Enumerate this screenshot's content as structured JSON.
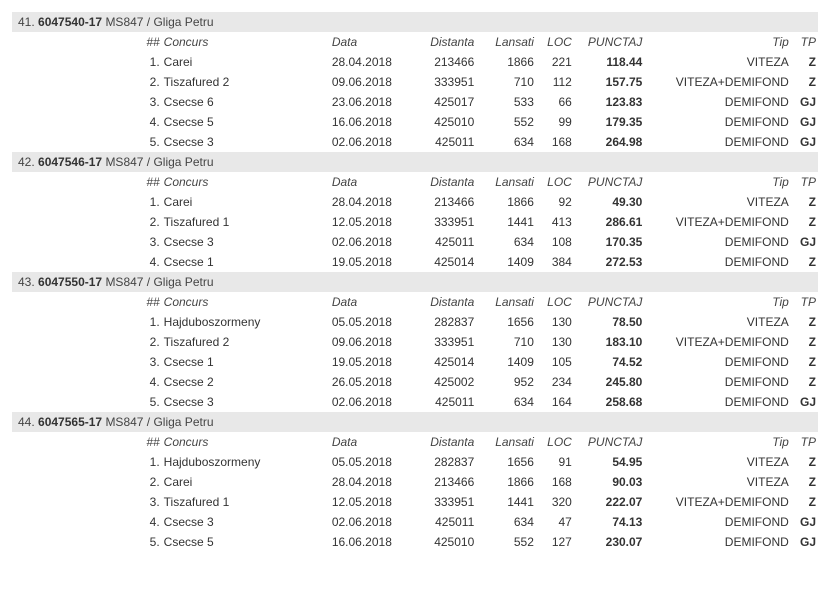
{
  "headers": {
    "nn": "##",
    "concurs": "Concurs",
    "data": "Data",
    "distanta": "Distanta",
    "lansati": "Lansati",
    "loc": "LOC",
    "punctaj": "PUNCTAJ",
    "tip": "Tip",
    "tp": "TP"
  },
  "groups": [
    {
      "idx": "41.",
      "code": "6047540-17",
      "rest": "MS847 / Gliga Petru",
      "rows": [
        {
          "n": "1.",
          "concurs": "Carei",
          "data": "28.04.2018",
          "dist": "213466",
          "lans": "1866",
          "loc": "221",
          "punc": "118.44",
          "tip": "VITEZA",
          "tp": "Z"
        },
        {
          "n": "2.",
          "concurs": "Tiszafured 2",
          "data": "09.06.2018",
          "dist": "333951",
          "lans": "710",
          "loc": "112",
          "punc": "157.75",
          "tip": "VITEZA+DEMIFOND",
          "tp": "Z"
        },
        {
          "n": "3.",
          "concurs": "Csecse 6",
          "data": "23.06.2018",
          "dist": "425017",
          "lans": "533",
          "loc": "66",
          "punc": "123.83",
          "tip": "DEMIFOND",
          "tp": "GJ"
        },
        {
          "n": "4.",
          "concurs": "Csecse 5",
          "data": "16.06.2018",
          "dist": "425010",
          "lans": "552",
          "loc": "99",
          "punc": "179.35",
          "tip": "DEMIFOND",
          "tp": "GJ"
        },
        {
          "n": "5.",
          "concurs": "Csecse 3",
          "data": "02.06.2018",
          "dist": "425011",
          "lans": "634",
          "loc": "168",
          "punc": "264.98",
          "tip": "DEMIFOND",
          "tp": "GJ"
        }
      ]
    },
    {
      "idx": "42.",
      "code": "6047546-17",
      "rest": "MS847 / Gliga Petru",
      "rows": [
        {
          "n": "1.",
          "concurs": "Carei",
          "data": "28.04.2018",
          "dist": "213466",
          "lans": "1866",
          "loc": "92",
          "punc": "49.30",
          "tip": "VITEZA",
          "tp": "Z"
        },
        {
          "n": "2.",
          "concurs": "Tiszafured 1",
          "data": "12.05.2018",
          "dist": "333951",
          "lans": "1441",
          "loc": "413",
          "punc": "286.61",
          "tip": "VITEZA+DEMIFOND",
          "tp": "Z"
        },
        {
          "n": "3.",
          "concurs": "Csecse 3",
          "data": "02.06.2018",
          "dist": "425011",
          "lans": "634",
          "loc": "108",
          "punc": "170.35",
          "tip": "DEMIFOND",
          "tp": "GJ"
        },
        {
          "n": "4.",
          "concurs": "Csecse 1",
          "data": "19.05.2018",
          "dist": "425014",
          "lans": "1409",
          "loc": "384",
          "punc": "272.53",
          "tip": "DEMIFOND",
          "tp": "Z"
        }
      ]
    },
    {
      "idx": "43.",
      "code": "6047550-17",
      "rest": "MS847 / Gliga Petru",
      "rows": [
        {
          "n": "1.",
          "concurs": "Hajduboszormeny",
          "data": "05.05.2018",
          "dist": "282837",
          "lans": "1656",
          "loc": "130",
          "punc": "78.50",
          "tip": "VITEZA",
          "tp": "Z"
        },
        {
          "n": "2.",
          "concurs": "Tiszafured 2",
          "data": "09.06.2018",
          "dist": "333951",
          "lans": "710",
          "loc": "130",
          "punc": "183.10",
          "tip": "VITEZA+DEMIFOND",
          "tp": "Z"
        },
        {
          "n": "3.",
          "concurs": "Csecse 1",
          "data": "19.05.2018",
          "dist": "425014",
          "lans": "1409",
          "loc": "105",
          "punc": "74.52",
          "tip": "DEMIFOND",
          "tp": "Z"
        },
        {
          "n": "4.",
          "concurs": "Csecse 2",
          "data": "26.05.2018",
          "dist": "425002",
          "lans": "952",
          "loc": "234",
          "punc": "245.80",
          "tip": "DEMIFOND",
          "tp": "Z"
        },
        {
          "n": "5.",
          "concurs": "Csecse 3",
          "data": "02.06.2018",
          "dist": "425011",
          "lans": "634",
          "loc": "164",
          "punc": "258.68",
          "tip": "DEMIFOND",
          "tp": "GJ"
        }
      ]
    },
    {
      "idx": "44.",
      "code": "6047565-17",
      "rest": "MS847 / Gliga Petru",
      "rows": [
        {
          "n": "1.",
          "concurs": "Hajduboszormeny",
          "data": "05.05.2018",
          "dist": "282837",
          "lans": "1656",
          "loc": "91",
          "punc": "54.95",
          "tip": "VITEZA",
          "tp": "Z"
        },
        {
          "n": "2.",
          "concurs": "Carei",
          "data": "28.04.2018",
          "dist": "213466",
          "lans": "1866",
          "loc": "168",
          "punc": "90.03",
          "tip": "VITEZA",
          "tp": "Z"
        },
        {
          "n": "3.",
          "concurs": "Tiszafured 1",
          "data": "12.05.2018",
          "dist": "333951",
          "lans": "1441",
          "loc": "320",
          "punc": "222.07",
          "tip": "VITEZA+DEMIFOND",
          "tp": "Z"
        },
        {
          "n": "4.",
          "concurs": "Csecse 3",
          "data": "02.06.2018",
          "dist": "425011",
          "lans": "634",
          "loc": "47",
          "punc": "74.13",
          "tip": "DEMIFOND",
          "tp": "GJ"
        },
        {
          "n": "5.",
          "concurs": "Csecse 5",
          "data": "16.06.2018",
          "dist": "425010",
          "lans": "552",
          "loc": "127",
          "punc": "230.07",
          "tip": "DEMIFOND",
          "tp": "GJ"
        }
      ]
    }
  ]
}
